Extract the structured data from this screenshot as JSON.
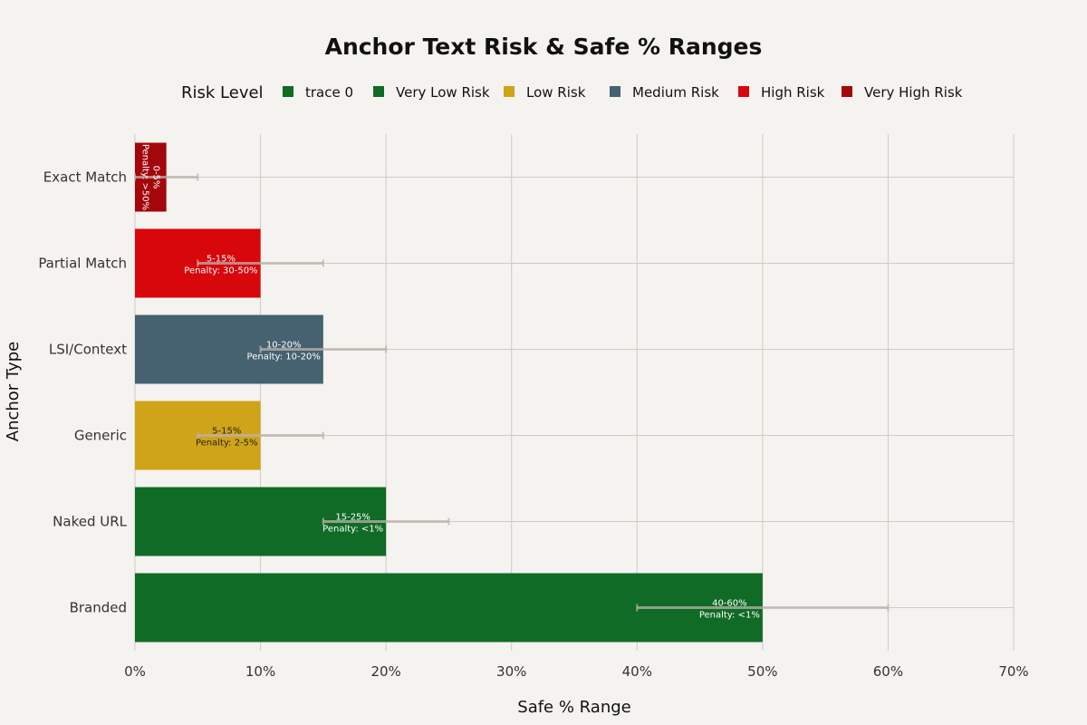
{
  "chart_data": {
    "type": "bar",
    "orientation": "horizontal",
    "title": "Anchor Text Risk & Safe % Ranges",
    "xlabel": "Safe % Range",
    "ylabel": "Anchor Type",
    "xlim": [
      0,
      70
    ],
    "x_ticks": [
      "0%",
      "10%",
      "20%",
      "30%",
      "40%",
      "50%",
      "60%",
      "70%"
    ],
    "x_tick_values": [
      0,
      10,
      20,
      30,
      40,
      50,
      60,
      70
    ],
    "grid": true,
    "legend_placement": "top",
    "legend": {
      "title": "Risk Level",
      "entries": [
        {
          "name": "trace 0",
          "color": "#0f6b25"
        },
        {
          "name": "Very Low Risk",
          "color": "#0f6b25"
        },
        {
          "name": "Low Risk",
          "color": "#cfa418"
        },
        {
          "name": "Medium Risk",
          "color": "#466170"
        },
        {
          "name": "High Risk",
          "color": "#d8070c"
        },
        {
          "name": "Very High Risk",
          "color": "#a3060b"
        }
      ]
    },
    "categories": [
      "Exact Match",
      "Partial Match",
      "LSI/Context",
      "Generic",
      "Naked URL",
      "Branded"
    ],
    "bars": [
      {
        "category": "Exact Match",
        "value": 2.5,
        "low": 0,
        "high": 5,
        "risk": "Very High Risk",
        "color": "#a3060b",
        "label_line1": "0-5%",
        "label_line2": "Penalty: >50%",
        "label_color": "#ffffff",
        "rotated": true
      },
      {
        "category": "Partial Match",
        "value": 10,
        "low": 5,
        "high": 15,
        "risk": "High Risk",
        "color": "#d8070c",
        "label_line1": "5-15%",
        "label_line2": "Penalty: 30-50%",
        "label_color": "#ffffff",
        "rotated": false
      },
      {
        "category": "LSI/Context",
        "value": 15,
        "low": 10,
        "high": 20,
        "risk": "Medium Risk",
        "color": "#466170",
        "label_line1": "10-20%",
        "label_line2": "Penalty: 10-20%",
        "label_color": "#ffffff",
        "rotated": false
      },
      {
        "category": "Generic",
        "value": 10,
        "low": 5,
        "high": 15,
        "risk": "Low Risk",
        "color": "#cfa418",
        "label_line1": "5-15%",
        "label_line2": "Penalty: 2-5%",
        "label_color": "#222222",
        "rotated": false
      },
      {
        "category": "Naked URL",
        "value": 20,
        "low": 15,
        "high": 25,
        "risk": "Very Low Risk",
        "color": "#0f6b25",
        "label_line1": "15-25%",
        "label_line2": "Penalty: <1%",
        "label_color": "#ffffff",
        "rotated": false
      },
      {
        "category": "Branded",
        "value": 50,
        "low": 40,
        "high": 60,
        "risk": "Very Low Risk",
        "color": "#0f6b25",
        "label_line1": "40-60%",
        "label_line2": "Penalty: <1%",
        "label_color": "#ffffff",
        "rotated": false
      }
    ],
    "colors": {
      "background": "#f5f3ef",
      "grid": "#cfcac4",
      "error_bar": "#bcb3ad"
    }
  }
}
